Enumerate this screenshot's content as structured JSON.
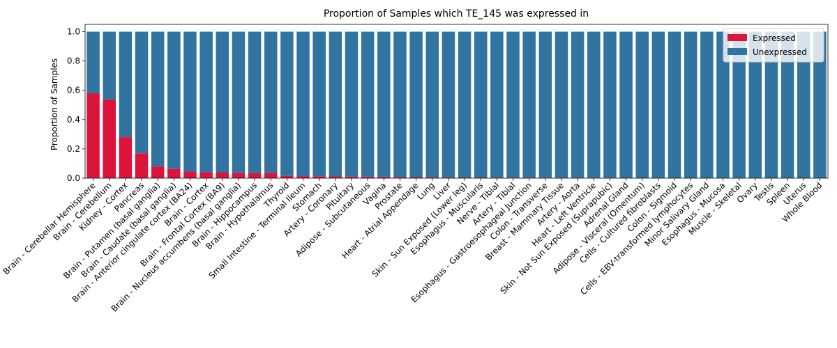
{
  "chart_data": {
    "type": "bar",
    "stacked": true,
    "title": "Proportion of Samples which TE_145 was expressed in",
    "xlabel": "",
    "ylabel": "Proportion of Samples",
    "ylim": [
      0,
      1.05
    ],
    "yticks": [
      0.0,
      0.2,
      0.4,
      0.6,
      0.8,
      1.0
    ],
    "ytick_labels": [
      "0.0",
      "0.2",
      "0.4",
      "0.6",
      "0.8",
      "1.0"
    ],
    "grid": false,
    "legend_position": "top-right",
    "categories": [
      "Brain - Cerebellar Hemisphere",
      "Brain - Cerebellum",
      "Kidney - Cortex",
      "Pancreas",
      "Brain - Putamen (basal ganglia)",
      "Brain - Caudate (basal ganglia)",
      "Brain - Anterior cingulate cortex (BA24)",
      "Brain - Cortex",
      "Brain - Frontal Cortex (BA9)",
      "Brain - Nucleus accumbens (basal ganglia)",
      "Brain - Hippocampus",
      "Brain - Hypothalamus",
      "Thyroid",
      "Small Intestine - Terminal Ileum",
      "Stomach",
      "Artery - Coronary",
      "Pituitary",
      "Adipose - Subcutaneous",
      "Vagina",
      "Prostate",
      "Heart - Atrial Appendage",
      "Lung",
      "Liver",
      "Skin - Sun Exposed (Lower leg)",
      "Esophagus - Muscularis",
      "Nerve - Tibial",
      "Artery - Tibial",
      "Esophagus - Gastroesophageal Junction",
      "Colon - Transverse",
      "Breast - Mammary Tissue",
      "Artery - Aorta",
      "Heart - Left Ventricle",
      "Skin - Not Sun Exposed (Suprapubic)",
      "Adrenal Gland",
      "Adipose - Visceral (Omentum)",
      "Cells - Cultured fibroblasts",
      "Colon - Sigmoid",
      "Cells - EBV-transformed lymphocytes",
      "Minor Salivary Gland",
      "Esophagus - Mucosa",
      "Muscle - Skeletal",
      "Ovary",
      "Testis",
      "Spleen",
      "Uterus",
      "Whole Blood"
    ],
    "series": [
      {
        "name": "Expressed",
        "color": "#dc143c",
        "values": [
          0.58,
          0.535,
          0.28,
          0.17,
          0.08,
          0.063,
          0.045,
          0.04,
          0.038,
          0.035,
          0.035,
          0.035,
          0.015,
          0.014,
          0.013,
          0.012,
          0.011,
          0.01,
          0.01,
          0.008,
          0.007,
          0.006,
          0.006,
          0.005,
          0.005,
          0.004,
          0.004,
          0.004,
          0.003,
          0.003,
          0.003,
          0.003,
          0.003,
          0.002,
          0.002,
          0.0,
          0.0,
          0.0,
          0.0,
          0.0,
          0.0,
          0.0,
          0.0,
          0.0,
          0.0,
          0.0
        ]
      },
      {
        "name": "Unexpressed",
        "color": "#3274a1",
        "values": [
          0.42,
          0.465,
          0.72,
          0.83,
          0.92,
          0.937,
          0.955,
          0.96,
          0.962,
          0.965,
          0.965,
          0.965,
          0.985,
          0.986,
          0.987,
          0.988,
          0.989,
          0.99,
          0.99,
          0.992,
          0.993,
          0.994,
          0.994,
          0.995,
          0.995,
          0.996,
          0.996,
          0.996,
          0.997,
          0.997,
          0.997,
          0.997,
          0.997,
          0.998,
          0.998,
          1.0,
          1.0,
          1.0,
          1.0,
          1.0,
          1.0,
          1.0,
          1.0,
          1.0,
          1.0,
          1.0
        ]
      }
    ]
  }
}
